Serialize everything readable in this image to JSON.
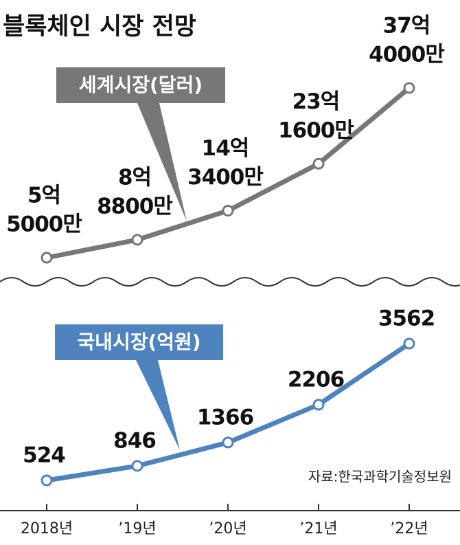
{
  "chart_data": {
    "type": "line",
    "title": "블록체인 시장 전망",
    "source": "자료:한국과학기술정보원",
    "categories": [
      "2018년",
      "’19년",
      "’20년",
      "’21년",
      "’22년"
    ],
    "series": [
      {
        "name": "세계시장(달러)",
        "color": "#777777",
        "values": [
          550000000,
          888000000,
          1434000000,
          2316000000,
          3740000000
        ],
        "value_labels": [
          [
            "5억",
            "5000만"
          ],
          [
            "8억",
            "8800만"
          ],
          [
            "14억",
            "3400만"
          ],
          [
            "23억",
            "1600만"
          ],
          [
            "37억",
            "4000만"
          ]
        ]
      },
      {
        "name": "국내시장(억원)",
        "color": "#4f83bd",
        "values": [
          524,
          846,
          1366,
          2206,
          3562
        ]
      }
    ]
  }
}
